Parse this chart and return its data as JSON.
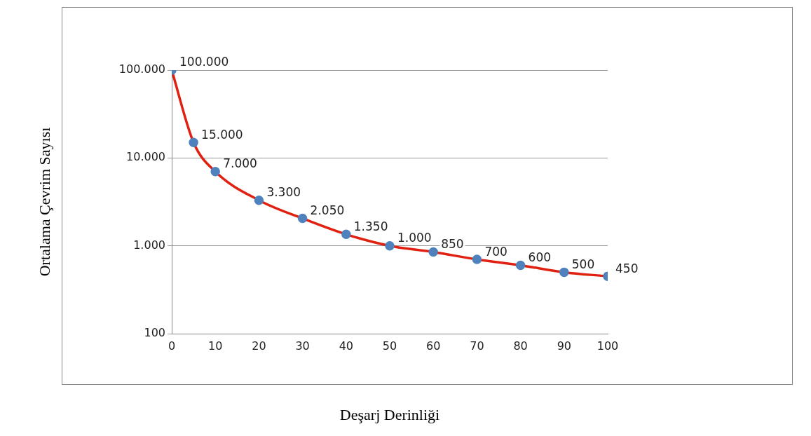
{
  "chart_data": {
    "type": "line",
    "xlabel": "Deşarj Derinliği",
    "ylabel": "Ortalama Çevrim Sayısı",
    "x": [
      0,
      5,
      10,
      20,
      30,
      40,
      50,
      60,
      70,
      80,
      90,
      100
    ],
    "series": [
      {
        "color": "#e02010",
        "colors": [
          "#4f81bd",
          "#4f81bd",
          "#4f81bd",
          "#4f81bd",
          "#4f81bd",
          "#4f81bd",
          "#4f81bd",
          "#4f81bd",
          "#4f81bd",
          "#4f81bd",
          "#4f81bd",
          "#4f81bd"
        ],
        "values": [
          100000,
          15000,
          7000,
          3300,
          2050,
          1350,
          1000,
          850,
          700,
          600,
          500,
          450
        ],
        "value_labels": [
          "100.000",
          "15.000",
          "7.000",
          "3.300",
          "2.050",
          "1.350",
          "1.000",
          "850",
          "700",
          "600",
          "500",
          "450"
        ]
      }
    ],
    "xlim": [
      0,
      100
    ],
    "xticks": [
      0,
      10,
      20,
      30,
      40,
      50,
      60,
      70,
      80,
      90,
      100
    ],
    "ylim": [
      100,
      100000
    ],
    "yticks": [
      {
        "value": 100,
        "label": "100"
      },
      {
        "value": 1000,
        "label": "1.000"
      },
      {
        "value": 10000,
        "label": "10.000"
      },
      {
        "value": 100000,
        "label": "100.000"
      }
    ],
    "log": "y",
    "grid": "y",
    "legend": false,
    "marker": "circle",
    "line_style": "solid"
  }
}
